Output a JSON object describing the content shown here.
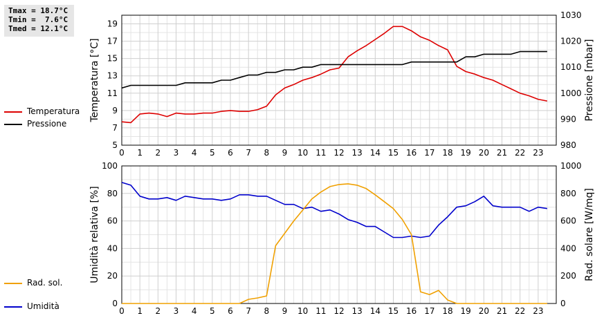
{
  "stats": {
    "tmax": "Tmax = 18.7°C",
    "tmin": "Tmin =  7.6°C",
    "tmed": "Tmed = 12.1°C"
  },
  "legend_top": [
    {
      "label": "Temperatura",
      "color": "#dd0000"
    },
    {
      "label": "Pressione",
      "color": "#000000"
    }
  ],
  "legend_bottom": [
    {
      "label": "Umidità",
      "color": "#0000cc"
    },
    {
      "label": "Rad. sol.",
      "color": "#f0a000"
    }
  ],
  "chart_data": [
    {
      "type": "line",
      "ylabel": "Temperatura [°C]",
      "ylabel_right": "Pressione [mbar]",
      "xlim": [
        0,
        24
      ],
      "ylim": [
        5,
        20
      ],
      "ylim_right": [
        980,
        1030
      ],
      "x_ticks": [
        "0",
        "1",
        "2",
        "3",
        "4",
        "5",
        "6",
        "7",
        "8",
        "9",
        "10",
        "11",
        "12",
        "13",
        "14",
        "15",
        "16",
        "17",
        "18",
        "19",
        "20",
        "21",
        "22",
        "23"
      ],
      "y_ticks": [
        "5",
        "7",
        "9",
        "11",
        "13",
        "15",
        "17",
        "19"
      ],
      "y_ticks_right": [
        "980",
        "990",
        "1000",
        "1010",
        "1020",
        "1030"
      ],
      "grid": true,
      "series": [
        {
          "name": "Temperatura",
          "color": "#dd0000",
          "axis": "left",
          "x": [
            0,
            0.5,
            1,
            1.5,
            2,
            2.5,
            3,
            3.5,
            4,
            4.5,
            5,
            5.5,
            6,
            6.5,
            7,
            7.5,
            8,
            8.5,
            9,
            9.5,
            10,
            10.5,
            11,
            11.5,
            12,
            12.5,
            13,
            13.5,
            14,
            14.5,
            15,
            15.5,
            16,
            16.5,
            17,
            17.5,
            18,
            18.5,
            19,
            19.5,
            20,
            20.5,
            21,
            21.5,
            22,
            22.5,
            23,
            23.5
          ],
          "y": [
            7.7,
            7.6,
            8.6,
            8.7,
            8.6,
            8.3,
            8.7,
            8.6,
            8.6,
            8.7,
            8.7,
            8.9,
            9.0,
            8.9,
            8.9,
            9.1,
            9.5,
            10.8,
            11.6,
            12.0,
            12.5,
            12.8,
            13.2,
            13.7,
            13.9,
            15.2,
            15.9,
            16.5,
            17.2,
            17.9,
            18.7,
            18.7,
            18.2,
            17.5,
            17.1,
            16.5,
            16.0,
            14.1,
            13.5,
            13.2,
            12.8,
            12.5,
            12.0,
            11.5,
            11.0,
            10.7,
            10.3,
            10.1
          ]
        },
        {
          "name": "Pressione",
          "color": "#000000",
          "axis": "right",
          "x": [
            0,
            0.5,
            1,
            1.5,
            2,
            2.5,
            3,
            3.5,
            4,
            4.5,
            5,
            5.5,
            6,
            6.5,
            7,
            7.5,
            8,
            8.5,
            9,
            9.5,
            10,
            10.5,
            11,
            11.5,
            12,
            12.5,
            13,
            13.5,
            14,
            14.5,
            15,
            15.5,
            16,
            16.5,
            17,
            17.5,
            18,
            18.5,
            19,
            19.5,
            20,
            20.5,
            21,
            21.5,
            22,
            22.5,
            23,
            23.5
          ],
          "y": [
            1002,
            1003,
            1003,
            1003,
            1003,
            1003,
            1003,
            1004,
            1004,
            1004,
            1004,
            1005,
            1005,
            1006,
            1007,
            1007,
            1008,
            1008,
            1009,
            1009,
            1010,
            1010,
            1011,
            1011,
            1011,
            1011,
            1011,
            1011,
            1011,
            1011,
            1011,
            1011,
            1012,
            1012,
            1012,
            1012,
            1012,
            1012,
            1014,
            1014,
            1015,
            1015,
            1015,
            1015,
            1016,
            1016,
            1016,
            1016
          ]
        }
      ]
    },
    {
      "type": "line",
      "ylabel": "Umidità relativa [%]",
      "ylabel_right": "Rad. solare [W/mq]",
      "xlim": [
        0,
        24
      ],
      "ylim": [
        0,
        100
      ],
      "ylim_right": [
        0,
        1000
      ],
      "x_ticks": [
        "0",
        "1",
        "2",
        "3",
        "4",
        "5",
        "6",
        "7",
        "8",
        "9",
        "10",
        "11",
        "12",
        "13",
        "14",
        "15",
        "16",
        "17",
        "18",
        "19",
        "20",
        "21",
        "22",
        "23"
      ],
      "y_ticks": [
        "0",
        "20",
        "40",
        "60",
        "80",
        "100"
      ],
      "y_ticks_right": [
        "0",
        "200",
        "400",
        "600",
        "800",
        "1000"
      ],
      "grid": true,
      "series": [
        {
          "name": "Umidità",
          "color": "#0000cc",
          "axis": "left",
          "x": [
            0,
            0.5,
            1,
            1.5,
            2,
            2.5,
            3,
            3.5,
            4,
            4.5,
            5,
            5.5,
            6,
            6.5,
            7,
            7.5,
            8,
            8.5,
            9,
            9.5,
            10,
            10.5,
            11,
            11.5,
            12,
            12.5,
            13,
            13.5,
            14,
            14.5,
            15,
            15.5,
            16,
            16.5,
            17,
            17.5,
            18,
            18.5,
            19,
            19.5,
            20,
            20.5,
            21,
            21.5,
            22,
            22.5,
            23,
            23.5
          ],
          "y": [
            88,
            86,
            78,
            76,
            76,
            77,
            75,
            78,
            77,
            76,
            76,
            75,
            76,
            79,
            79,
            78,
            78,
            75,
            72,
            72,
            69,
            70,
            67,
            68,
            65,
            61,
            59,
            56,
            56,
            52,
            48,
            48,
            49,
            48,
            49,
            57,
            63,
            70,
            71,
            74,
            78,
            71,
            70,
            70,
            70,
            67,
            70,
            69
          ]
        },
        {
          "name": "Rad. sol.",
          "color": "#f0a000",
          "axis": "right",
          "x": [
            0,
            0.5,
            1,
            1.5,
            2,
            2.5,
            3,
            3.5,
            4,
            4.5,
            5,
            5.5,
            6,
            6.5,
            7,
            7.5,
            8,
            8.5,
            9,
            9.5,
            10,
            10.5,
            11,
            11.5,
            12,
            12.5,
            13,
            13.5,
            14,
            14.5,
            15,
            15.5,
            16,
            16.5,
            17,
            17.5,
            18,
            18.5,
            19,
            19.5,
            20,
            20.5,
            21,
            21.5,
            22,
            22.5,
            23,
            23.5
          ],
          "y": [
            0,
            0,
            0,
            0,
            0,
            0,
            0,
            0,
            0,
            0,
            0,
            0,
            0,
            0,
            30,
            40,
            55,
            420,
            510,
            600,
            680,
            760,
            810,
            850,
            865,
            870,
            860,
            835,
            790,
            740,
            690,
            610,
            500,
            85,
            65,
            95,
            25,
            0,
            0,
            0,
            0,
            0,
            0,
            0,
            0,
            0,
            0,
            0
          ]
        }
      ]
    }
  ]
}
